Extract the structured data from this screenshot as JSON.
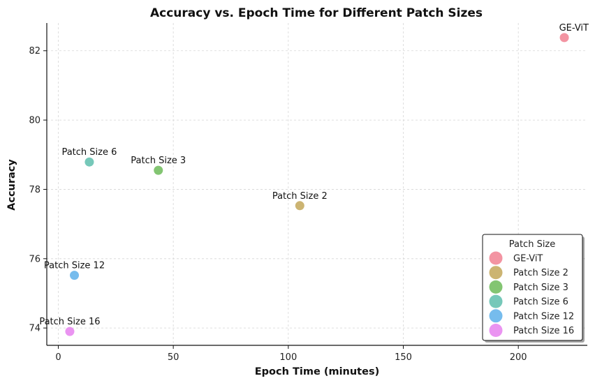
{
  "chart_data": {
    "type": "scatter",
    "title": "Accuracy vs. Epoch Time for Different Patch Sizes",
    "xlabel": "Epoch Time (minutes)",
    "ylabel": "Accuracy",
    "xlim": [
      -5,
      230
    ],
    "ylim": [
      73.5,
      82.8
    ],
    "xticks": [
      0,
      50,
      100,
      150,
      200
    ],
    "yticks": [
      74,
      76,
      78,
      80,
      82
    ],
    "grid": true,
    "legend": {
      "title": "Patch Size",
      "placement": "bottom-right"
    },
    "series": [
      {
        "name": "GE-ViT",
        "x": 220,
        "y": 82.38,
        "color": "#f28e9d"
      },
      {
        "name": "Patch Size 2",
        "x": 105,
        "y": 77.53,
        "color": "#c9b06a"
      },
      {
        "name": "Patch Size 3",
        "x": 43.5,
        "y": 78.55,
        "color": "#7cc26a"
      },
      {
        "name": "Patch Size 6",
        "x": 13.5,
        "y": 78.79,
        "color": "#6fc5b5"
      },
      {
        "name": "Patch Size 12",
        "x": 7,
        "y": 75.52,
        "color": "#6fb8ec"
      },
      {
        "name": "Patch Size 16",
        "x": 5,
        "y": 73.9,
        "color": "#e98ef0"
      }
    ]
  }
}
